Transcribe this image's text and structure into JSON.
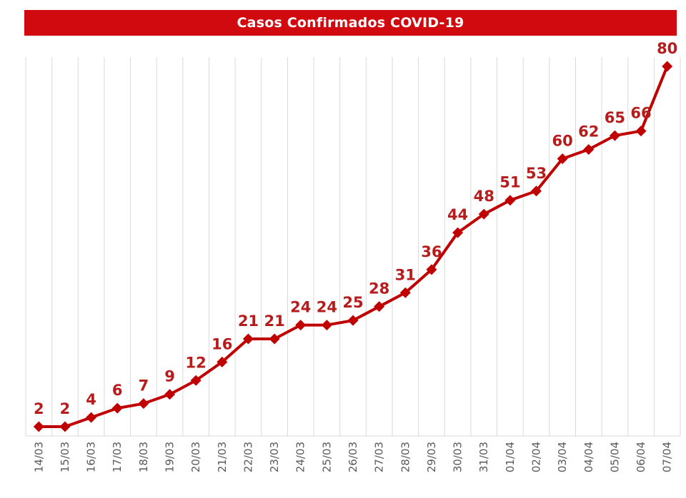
{
  "colors": {
    "title_background": "#d10a10",
    "series": "#c00000",
    "data_labels": "#b71c1c",
    "grid": "#d9d9d9",
    "tick_text": "#595959"
  },
  "chart_data": {
    "type": "line",
    "title": "Casos Confirmados COVID-19",
    "x": [
      "14/03",
      "15/03",
      "16/03",
      "17/03",
      "18/03",
      "19/03",
      "20/03",
      "21/03",
      "22/03",
      "23/03",
      "24/03",
      "25/03",
      "26/03",
      "27/03",
      "28/03",
      "29/03",
      "30/03",
      "31/03",
      "01/04",
      "02/04",
      "03/04",
      "04/04",
      "05/04",
      "06/04",
      "07/04"
    ],
    "series": [
      {
        "values": [
          2,
          2,
          4,
          6,
          7,
          9,
          12,
          16,
          21,
          21,
          24,
          24,
          25,
          28,
          31,
          36,
          44,
          48,
          51,
          53,
          60,
          62,
          65,
          66,
          80
        ]
      }
    ],
    "ylim": [
      0,
      82
    ],
    "marker": "diamond",
    "data_labels": true,
    "grid": {
      "vertical": true,
      "horizontal": false
    },
    "y_axis_visible": false,
    "legend": "none"
  }
}
